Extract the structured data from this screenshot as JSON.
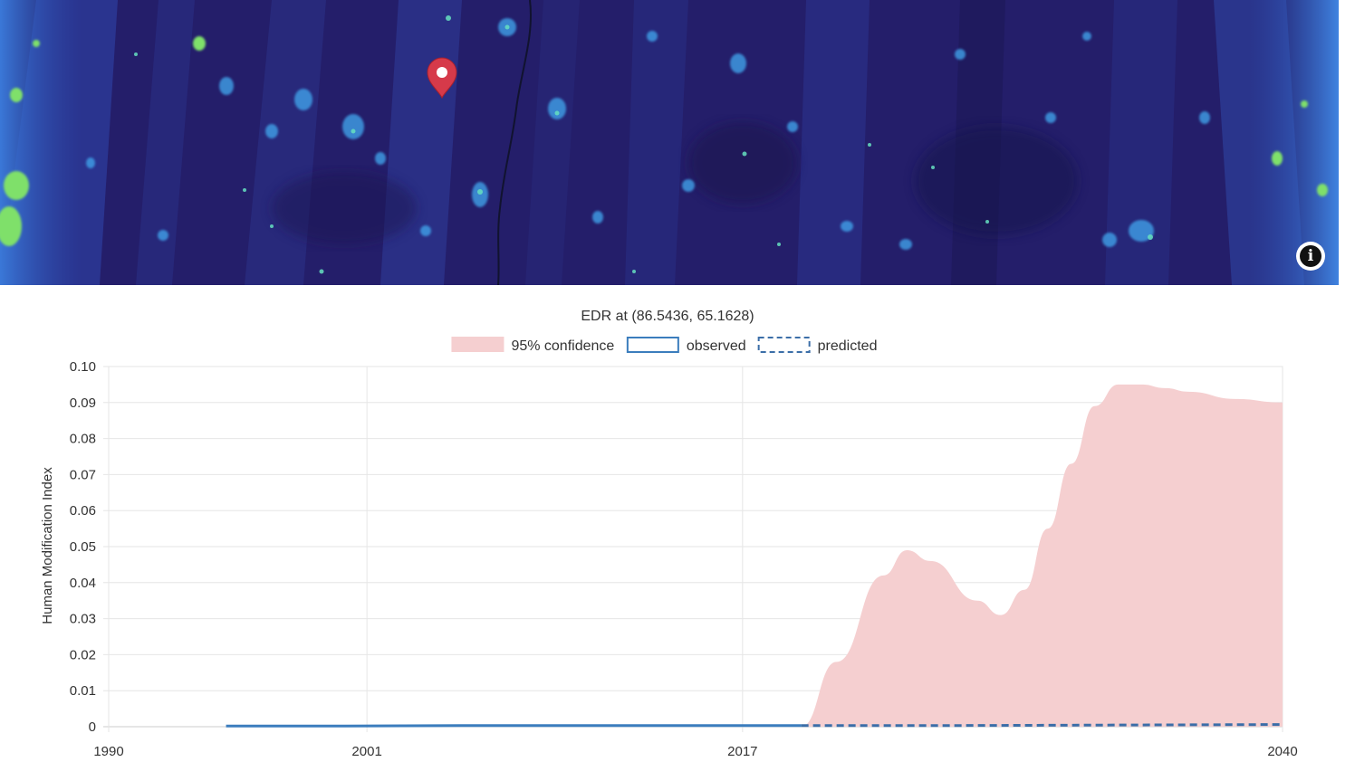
{
  "map": {
    "background": "#241e6a",
    "marker_color": "#d63a4a",
    "info_button_icon": "info-icon",
    "info_button_glyph": "i"
  },
  "chart_data": {
    "type": "line",
    "title": "EDR at (86.5436, 65.1628)",
    "xlabel": "",
    "ylabel": "Human Modification Index",
    "xlim": [
      1990,
      2040
    ],
    "ylim": [
      0,
      0.1
    ],
    "x_ticks": [
      "1990",
      "2001",
      "2017",
      "2040"
    ],
    "y_ticks": [
      "0",
      "0.01",
      "0.02",
      "0.03",
      "0.04",
      "0.05",
      "0.06",
      "0.07",
      "0.08",
      "0.09",
      "0.10"
    ],
    "grid": true,
    "legend_position": "top-center",
    "legend": [
      {
        "label": "95% confidence",
        "style": "fill",
        "color": "#f5cfd0"
      },
      {
        "label": "observed",
        "style": "solid",
        "color": "#3b7dbd"
      },
      {
        "label": "predicted",
        "style": "dashed",
        "color": "#3b6ea8"
      }
    ],
    "series": [
      {
        "name": "observed",
        "x": [
          1995,
          2000,
          2005,
          2010,
          2015,
          2019.5
        ],
        "values": [
          0.0002,
          0.0002,
          0.0003,
          0.0003,
          0.0003,
          0.0003
        ]
      },
      {
        "name": "predicted",
        "x": [
          2019.5,
          2025,
          2030,
          2035,
          2040
        ],
        "values": [
          0.0003,
          0.0003,
          0.0004,
          0.0005,
          0.0006
        ]
      },
      {
        "name": "95% confidence",
        "x": [
          2019.5,
          2021,
          2023,
          2024,
          2025,
          2027,
          2028,
          2029,
          2030,
          2031,
          2032,
          2033,
          2034,
          2035,
          2036,
          2038,
          2040
        ],
        "upper": [
          0.0,
          0.018,
          0.042,
          0.049,
          0.046,
          0.035,
          0.031,
          0.038,
          0.055,
          0.073,
          0.089,
          0.095,
          0.095,
          0.094,
          0.093,
          0.091,
          0.09
        ],
        "lower": [
          0.0,
          0.0,
          0.0,
          0.0,
          0.0,
          0.0,
          0.0,
          0.0,
          0.0,
          0.0,
          0.0,
          0.0,
          0.0,
          0.0,
          0.0,
          0.0,
          0.0
        ]
      }
    ]
  }
}
